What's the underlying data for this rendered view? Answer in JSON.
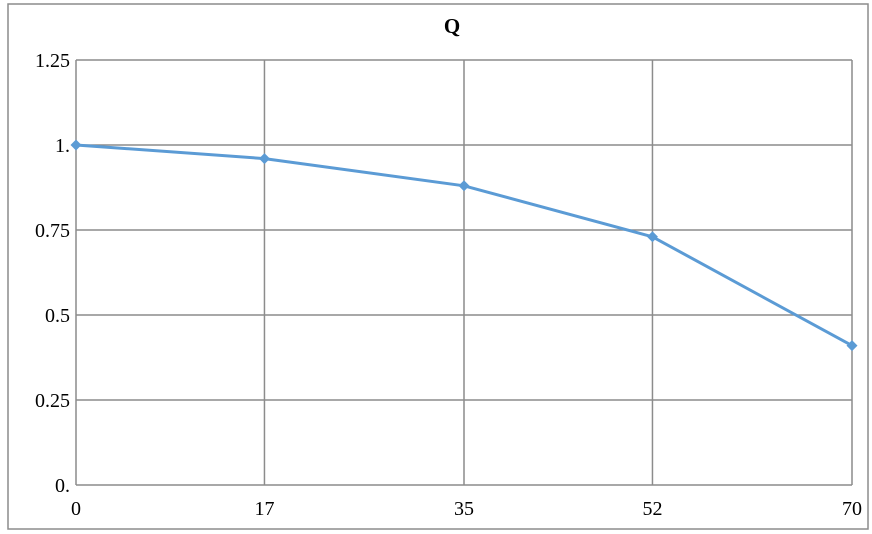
{
  "chart_data": {
    "type": "line",
    "title": "Q",
    "xlabel": "",
    "ylabel": "",
    "x": [
      0,
      17,
      35,
      52,
      70
    ],
    "x_tick_labels": [
      "0",
      "17",
      "35",
      "52",
      "70"
    ],
    "y_tick_values": [
      0,
      0.25,
      0.5,
      0.75,
      1,
      1.25
    ],
    "y_tick_labels": [
      "0.",
      "0.25",
      "0.5",
      "0.75",
      "1.",
      "1.25"
    ],
    "ylim": [
      0,
      1.25
    ],
    "grid": true,
    "legend": "none",
    "series": [
      {
        "values": [
          1.0,
          0.96,
          0.88,
          0.73,
          0.41
        ],
        "color": "#5b9bd5",
        "marker": "diamond"
      }
    ]
  }
}
